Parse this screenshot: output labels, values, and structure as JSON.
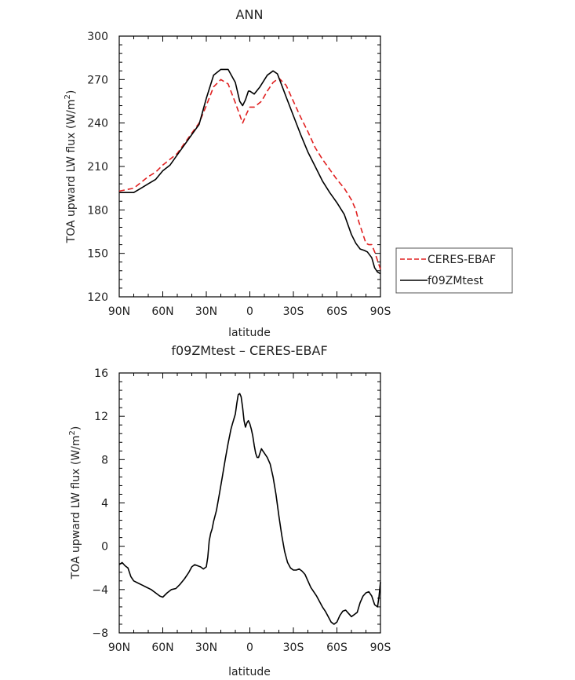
{
  "chart_data": [
    {
      "type": "line",
      "title": "ANN",
      "xlabel": "latitude",
      "ylabel": "TOA upward LW flux (W/m",
      "ylabel_sup": "2",
      "ylabel_tail": ")",
      "xlim": [
        90,
        -90
      ],
      "ylim": [
        120,
        300
      ],
      "x_ticks": [
        90,
        60,
        30,
        0,
        -30,
        -60,
        -90
      ],
      "x_tick_labels": [
        "90N",
        "60N",
        "30N",
        "0",
        "30S",
        "60S",
        "90S"
      ],
      "y_ticks": [
        120,
        150,
        180,
        210,
        240,
        270,
        300
      ],
      "y_tick_labels": [
        "120",
        "150",
        "180",
        "210",
        "240",
        "270",
        "300"
      ],
      "legend": {
        "placement": "right"
      },
      "series": [
        {
          "name": "CERES-EBAF",
          "color": "#e02020",
          "dash": true,
          "x": [
            90,
            85,
            80,
            75,
            70,
            65,
            60,
            55,
            50,
            45,
            40,
            35,
            30,
            25,
            20,
            15,
            10,
            5,
            2,
            0,
            -3,
            -8,
            -12,
            -16,
            -20,
            -25,
            -30,
            -35,
            -40,
            -45,
            -50,
            -55,
            -60,
            -65,
            -70,
            -73,
            -75,
            -78,
            -80,
            -82,
            -84,
            -86,
            -88,
            -90
          ],
          "y": [
            193,
            194,
            195,
            199,
            203,
            206,
            211,
            215,
            219,
            226,
            233,
            240,
            252,
            265,
            270,
            267,
            254,
            240,
            247,
            251,
            251,
            255,
            262,
            268,
            271,
            266,
            255,
            244,
            234,
            223,
            215,
            208,
            201,
            195,
            187,
            180,
            172,
            163,
            157,
            156,
            156,
            151,
            145,
            139
          ]
        },
        {
          "name": "f09ZMtest",
          "color": "#000000",
          "dash": false,
          "x": [
            90,
            85,
            80,
            75,
            70,
            65,
            60,
            55,
            50,
            45,
            40,
            35,
            30,
            25,
            20,
            15,
            10,
            7,
            5,
            3,
            1,
            0,
            -3,
            -7,
            -12,
            -16,
            -19,
            -22,
            -25,
            -30,
            -35,
            -40,
            -45,
            -50,
            -55,
            -60,
            -65,
            -70,
            -73,
            -76,
            -79,
            -81,
            -84,
            -86,
            -88,
            -90
          ],
          "y": [
            192,
            192,
            192,
            195,
            198,
            201,
            207,
            211,
            218,
            225,
            232,
            239,
            257,
            273,
            277,
            277,
            268,
            255,
            252,
            256,
            262,
            262,
            260,
            265,
            273,
            276,
            274,
            266,
            258,
            245,
            232,
            220,
            210,
            200,
            192,
            185,
            177,
            163,
            157,
            153,
            152,
            151,
            147,
            140,
            137,
            136
          ]
        }
      ]
    },
    {
      "type": "line",
      "title": "f09ZMtest – CERES-EBAF",
      "xlabel": "latitude",
      "ylabel": "TOA upward LW flux (W/m",
      "ylabel_sup": "2",
      "ylabel_tail": ")",
      "xlim": [
        90,
        -90
      ],
      "ylim": [
        -8,
        16
      ],
      "x_ticks": [
        90,
        60,
        30,
        0,
        -30,
        -60,
        -90
      ],
      "x_tick_labels": [
        "90N",
        "60N",
        "30N",
        "0",
        "30S",
        "60S",
        "90S"
      ],
      "y_ticks": [
        -8,
        -4,
        0,
        4,
        8,
        12,
        16
      ],
      "y_tick_labels": [
        "−8",
        "−4",
        "0",
        "4",
        "8",
        "12",
        "16"
      ],
      "series": [
        {
          "color": "#000000",
          "dash": false,
          "x": [
            90,
            88,
            86,
            84,
            82,
            80,
            77,
            74,
            71,
            68,
            65,
            62,
            60,
            57,
            54,
            51,
            48,
            45,
            42,
            40,
            38,
            36,
            34,
            32,
            30,
            29,
            28,
            27,
            26,
            25,
            23,
            21,
            19,
            17,
            15,
            13,
            12,
            10,
            9,
            8,
            7,
            6,
            5,
            4,
            3,
            2,
            1,
            0,
            -1,
            -2,
            -3,
            -4,
            -5,
            -6,
            -7,
            -8,
            -9,
            -10,
            -12,
            -14,
            -16,
            -18,
            -20,
            -22,
            -24,
            -26,
            -28,
            -30,
            -32,
            -34,
            -36,
            -38,
            -40,
            -42,
            -44,
            -46,
            -48,
            -50,
            -52,
            -54,
            -56,
            -58,
            -60,
            -62,
            -64,
            -66,
            -68,
            -70,
            -72,
            -74,
            -76,
            -78,
            -80,
            -82,
            -84,
            -86,
            -88,
            -89,
            -90
          ],
          "y": [
            -1.7,
            -1.5,
            -1.8,
            -2.0,
            -2.8,
            -3.2,
            -3.4,
            -3.6,
            -3.8,
            -4.0,
            -4.3,
            -4.6,
            -4.7,
            -4.3,
            -4.0,
            -3.9,
            -3.5,
            -3.0,
            -2.4,
            -1.9,
            -1.7,
            -1.8,
            -1.9,
            -2.1,
            -1.9,
            -1.0,
            0.5,
            1.2,
            1.6,
            2.3,
            3.3,
            4.8,
            6.4,
            8.0,
            9.5,
            10.8,
            11.3,
            12.2,
            13.2,
            14.0,
            14.1,
            13.8,
            12.8,
            11.6,
            11.0,
            11.4,
            11.6,
            11.3,
            10.8,
            10.2,
            9.3,
            8.6,
            8.2,
            8.2,
            8.6,
            9.0,
            8.8,
            8.6,
            8.2,
            7.6,
            6.4,
            4.8,
            2.8,
            1.0,
            -0.5,
            -1.5,
            -2.0,
            -2.2,
            -2.2,
            -2.1,
            -2.3,
            -2.6,
            -3.2,
            -3.8,
            -4.2,
            -4.6,
            -5.1,
            -5.6,
            -6.0,
            -6.5,
            -7.0,
            -7.2,
            -7.0,
            -6.4,
            -6.0,
            -5.9,
            -6.2,
            -6.5,
            -6.3,
            -6.1,
            -5.2,
            -4.6,
            -4.3,
            -4.2,
            -4.6,
            -5.4,
            -5.6,
            -4.6,
            -3.3
          ]
        }
      ]
    }
  ]
}
